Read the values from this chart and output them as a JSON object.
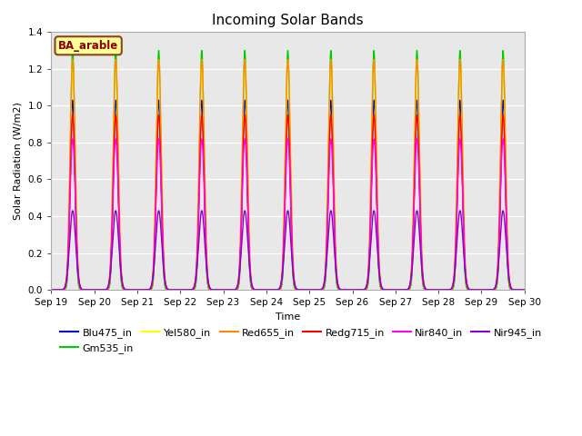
{
  "title": "Incoming Solar Bands",
  "xlabel": "Time",
  "ylabel": "Solar Radiation (W/m2)",
  "ylim": [
    0.0,
    1.4
  ],
  "yticks": [
    0.0,
    0.2,
    0.4,
    0.6,
    0.8,
    1.0,
    1.2,
    1.4
  ],
  "xtick_labels": [
    "Sep 19",
    "Sep 20",
    "Sep 21",
    "Sep 22",
    "Sep 23",
    "Sep 24",
    "Sep 25",
    "Sep 26",
    "Sep 27",
    "Sep 28",
    "Sep 29",
    "Sep 30"
  ],
  "annotation_text": "BA_arable",
  "annotation_color": "#8B0000",
  "annotation_bg": "#FFFF99",
  "annotation_border": "#8B4513",
  "series": [
    {
      "name": "Blu475_in",
      "color": "#0000CC",
      "peak": 1.03,
      "sigma": 0.055
    },
    {
      "name": "Gm535_in",
      "color": "#00CC00",
      "peak": 1.3,
      "sigma": 0.05
    },
    {
      "name": "Yel580_in",
      "color": "#FFFF00",
      "peak": 1.25,
      "sigma": 0.055
    },
    {
      "name": "Red655_in",
      "color": "#FF8800",
      "peak": 1.25,
      "sigma": 0.06
    },
    {
      "name": "Redg715_in",
      "color": "#FF0000",
      "peak": 0.95,
      "sigma": 0.058
    },
    {
      "name": "Nir840_in",
      "color": "#FF00FF",
      "peak": 0.82,
      "sigma": 0.062
    },
    {
      "name": "Nir945_in",
      "color": "#8800CC",
      "peak": 0.43,
      "sigma": 0.07
    }
  ],
  "n_days": 11,
  "fig_bg": "#FFFFFF",
  "plot_bg": "#E8E8E8"
}
